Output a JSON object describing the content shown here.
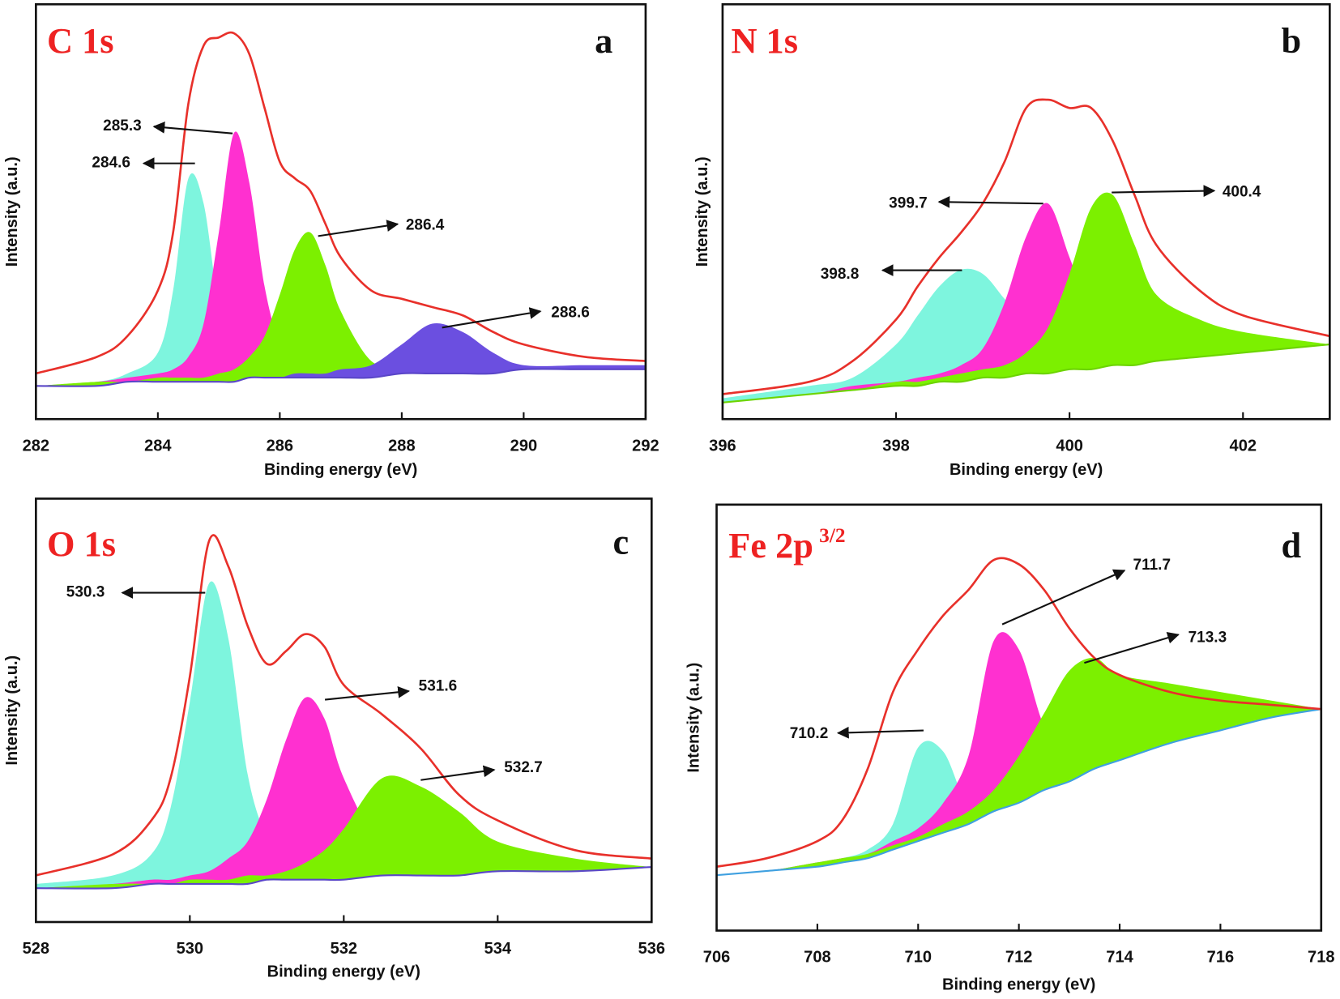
{
  "chart_data": [
    {
      "type": "area",
      "title": "C 1s",
      "panel_label": "a",
      "x_label": "Binding energy (eV)",
      "y_label": "Intensity (a.u.)",
      "x": [
        282,
        283,
        283.5,
        284,
        284.25,
        284.5,
        284.75,
        285,
        285.25,
        285.5,
        285.75,
        286,
        286.25,
        286.5,
        286.75,
        287,
        287.5,
        288,
        288.5,
        289,
        289.5,
        290,
        291,
        292
      ],
      "series": [
        {
          "color": "#7ef5de",
          "style": "area",
          "values": [
            8,
            9,
            11,
            16,
            31,
            58,
            52,
            27,
            15,
            13,
            12,
            11,
            11,
            11,
            11,
            10,
            10,
            11,
            11,
            11,
            11,
            12,
            12,
            12
          ]
        },
        {
          "color": "#ff30d0",
          "style": "area",
          "values": [
            8,
            9,
            10,
            11,
            12,
            15,
            23,
            45,
            69,
            57,
            32,
            18,
            14,
            12,
            12,
            11,
            11,
            11,
            11,
            11,
            11,
            12,
            12,
            12
          ]
        },
        {
          "color": "#7cf000",
          "style": "area",
          "values": [
            8,
            9,
            9,
            10,
            10,
            10,
            10,
            11,
            12,
            15,
            20,
            30,
            41,
            45,
            37,
            26,
            14,
            13,
            12,
            12,
            12,
            12,
            12,
            12
          ]
        },
        {
          "color": "#6b4fe0",
          "style": "area",
          "values": [
            8,
            8,
            9,
            9,
            9,
            9,
            9,
            9,
            9,
            10,
            10,
            10,
            11,
            11,
            11,
            12,
            13,
            18,
            23,
            21,
            16,
            13,
            13,
            13
          ]
        },
        {
          "color": "#5a46c8",
          "style": "baseline",
          "values": [
            8,
            8,
            9,
            9,
            9,
            9,
            9,
            9,
            9,
            10,
            10,
            10,
            10,
            10,
            10,
            10,
            10,
            11,
            11,
            11,
            11,
            12,
            12,
            12
          ]
        },
        {
          "color": "#e8302a",
          "style": "line",
          "values": [
            11,
            15,
            20,
            31,
            45,
            76,
            90,
            92,
            93,
            88,
            75,
            62,
            58,
            55,
            47,
            39,
            31,
            29,
            27,
            25,
            21,
            18,
            15,
            14
          ]
        }
      ],
      "xlim": [
        282,
        292
      ],
      "xticks": [
        282,
        284,
        286,
        288,
        290,
        292
      ],
      "ylim": [
        0,
        100
      ],
      "peak_labels": [
        284.6,
        285.3,
        286.4,
        288.6
      ]
    },
    {
      "type": "area",
      "title": "N 1s",
      "panel_label": "b",
      "x_label": "Binding energy (eV)",
      "y_label": "Intensity (a.u.)",
      "x": [
        396,
        397,
        397.5,
        398,
        398.25,
        398.5,
        398.75,
        399,
        399.25,
        399.5,
        399.75,
        400,
        400.25,
        400.5,
        400.75,
        401,
        401.5,
        402,
        403
      ],
      "series": [
        {
          "color": "#7ef5de",
          "style": "area",
          "values": [
            5,
            8,
            10,
            18,
            25,
            32,
            36,
            35,
            29,
            23,
            19,
            16,
            15,
            15,
            15,
            15,
            15,
            16,
            18
          ]
        },
        {
          "color": "#ff30d0",
          "style": "area",
          "values": [
            4,
            6,
            8,
            9,
            10,
            11,
            13,
            17,
            28,
            44,
            52,
            39,
            25,
            18,
            16,
            16,
            16,
            16,
            18
          ]
        },
        {
          "color": "#7cf000",
          "style": "area",
          "values": [
            4,
            6,
            7,
            9,
            9,
            10,
            11,
            12,
            13,
            16,
            22,
            35,
            51,
            54,
            42,
            30,
            24,
            21,
            18
          ]
        },
        {
          "color": "#6cd400",
          "style": "baseline",
          "values": [
            4,
            6,
            7,
            8,
            8,
            9,
            9,
            10,
            10,
            11,
            11,
            12,
            12,
            13,
            13,
            14,
            15,
            16,
            18
          ]
        },
        {
          "color": "#e8302a",
          "style": "line",
          "values": [
            6,
            9,
            14,
            24,
            32,
            39,
            45,
            52,
            62,
            75,
            77,
            75,
            75,
            67,
            54,
            42,
            31,
            25,
            20
          ]
        }
      ],
      "xlim": [
        396,
        403
      ],
      "xticks": [
        396,
        398,
        400,
        402
      ],
      "ylim": [
        0,
        100
      ],
      "peak_labels": [
        398.8,
        399.7,
        400.4
      ]
    },
    {
      "type": "area",
      "title": "O 1s",
      "panel_label": "c",
      "x_label": "Binding energy (eV)",
      "y_label": "Intensity (a.u.)",
      "x": [
        528,
        529,
        529.5,
        529.75,
        530,
        530.25,
        530.5,
        530.75,
        531,
        531.25,
        531.5,
        531.75,
        532,
        532.5,
        533,
        533.5,
        534,
        535,
        536
      ],
      "series": [
        {
          "color": "#7ef5de",
          "style": "area",
          "values": [
            9,
            11,
            16,
            27,
            52,
            80,
            67,
            35,
            20,
            15,
            13,
            12,
            12,
            12,
            12,
            12,
            12,
            12,
            13
          ]
        },
        {
          "color": "#ff30d0",
          "style": "area",
          "values": [
            8,
            9,
            10,
            10,
            11,
            12,
            15,
            19,
            29,
            43,
            53,
            48,
            34,
            17,
            13,
            13,
            12,
            13,
            13
          ]
        },
        {
          "color": "#7cf000",
          "style": "area",
          "values": [
            8,
            9,
            9,
            9,
            10,
            10,
            10,
            11,
            11,
            12,
            14,
            17,
            22,
            34,
            32,
            26,
            19,
            15,
            13
          ]
        },
        {
          "color": "#5a46c8",
          "style": "baseline",
          "values": [
            8,
            8,
            9,
            9,
            9,
            9,
            9,
            9,
            10,
            10,
            10,
            10,
            10,
            11,
            11,
            11,
            12,
            12,
            13
          ]
        },
        {
          "color": "#e8302a",
          "style": "line",
          "values": [
            11,
            16,
            24,
            34,
            58,
            90,
            84,
            70,
            61,
            64,
            68,
            65,
            56,
            49,
            41,
            30,
            24,
            17,
            15
          ]
        }
      ],
      "xlim": [
        528,
        536
      ],
      "xticks": [
        528,
        530,
        532,
        534,
        536
      ],
      "ylim": [
        0,
        100
      ],
      "peak_labels": [
        530.3,
        531.6,
        532.7
      ]
    },
    {
      "type": "area",
      "title": "Fe 2p",
      "title_superscript": "3/2",
      "panel_label": "d",
      "x_label": "Binding energy (eV)",
      "y_label": "Intensity (a.u.)",
      "x": [
        706,
        707,
        708,
        708.5,
        709,
        709.5,
        710,
        710.5,
        711,
        711.5,
        712,
        712.5,
        713,
        713.5,
        714,
        715,
        716,
        717,
        718
      ],
      "series": [
        {
          "color": "#7ef5de",
          "style": "area",
          "values": [
            13,
            14,
            16,
            17,
            19,
            25,
            43,
            42,
            29,
            29,
            31,
            33,
            35,
            38,
            40,
            44,
            47,
            50,
            52
          ]
        },
        {
          "color": "#ff30d0",
          "style": "area",
          "values": [
            13,
            14,
            16,
            17,
            18,
            21,
            24,
            30,
            41,
            68,
            66,
            48,
            41,
            40,
            42,
            45,
            48,
            50,
            52
          ]
        },
        {
          "color": "#7cf000",
          "style": "area",
          "values": [
            13,
            14,
            16,
            17,
            18,
            20,
            22,
            25,
            28,
            33,
            41,
            51,
            61,
            64,
            60,
            58,
            56,
            54,
            52
          ]
        },
        {
          "color": "#3fa0e0",
          "style": "baseline",
          "values": [
            13,
            14,
            15,
            16,
            17,
            19,
            21,
            23,
            25,
            28,
            30,
            33,
            35,
            38,
            40,
            44,
            47,
            50,
            52
          ]
        },
        {
          "color": "#e8302a",
          "style": "line",
          "values": [
            15,
            17,
            21,
            26,
            38,
            56,
            66,
            74,
            80,
            87,
            86,
            80,
            71,
            64,
            60,
            56,
            54,
            53,
            52
          ]
        }
      ],
      "xlim": [
        706,
        718
      ],
      "xticks": [
        706,
        708,
        710,
        712,
        714,
        716,
        718
      ],
      "ylim": [
        0,
        100
      ],
      "peak_labels": [
        710.2,
        711.7,
        713.3
      ]
    }
  ]
}
